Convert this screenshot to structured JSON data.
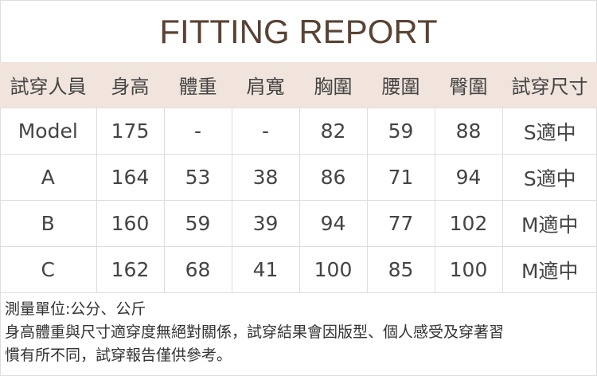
{
  "title": "FITTING REPORT",
  "colors": {
    "title": "#5a4234",
    "header_bg": "#f0e4dc"
  },
  "table": {
    "headers": [
      "試穿人員",
      "身高",
      "體重",
      "肩寬",
      "胸圍",
      "腰圍",
      "臀圍",
      "試穿尺寸"
    ],
    "rows": [
      [
        "Model",
        "175",
        "-",
        "-",
        "82",
        "59",
        "88",
        "S適中"
      ],
      [
        "A",
        "164",
        "53",
        "38",
        "86",
        "71",
        "94",
        "S適中"
      ],
      [
        "B",
        "160",
        "59",
        "39",
        "94",
        "77",
        "102",
        "M適中"
      ],
      [
        "C",
        "162",
        "68",
        "41",
        "100",
        "85",
        "100",
        "M適中"
      ]
    ]
  },
  "notes": [
    "測量單位:公分、公斤",
    "身高體重與尺寸適穿度無絕對關係，試穿結果會因版型、個人感受及穿著習",
    "慣有所不同，試穿報告僅供參考。"
  ]
}
